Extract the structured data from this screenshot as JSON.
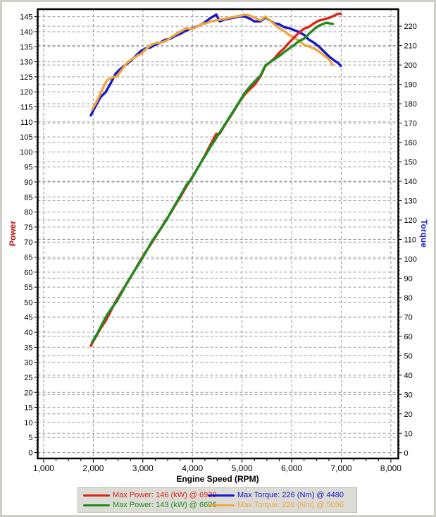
{
  "chart_data": {
    "type": "line",
    "title": "",
    "xlabel": "Engine Speed (RPM)",
    "grid": true,
    "grid_color": "#9c9c9c",
    "legend_position": "bottom",
    "axes": {
      "rpm": {
        "min": 880,
        "max": 8150,
        "tick_start": 1000,
        "tick_end": 8000,
        "major": 1000,
        "minor": 250
      },
      "power": {
        "min": -2,
        "max": 147.5,
        "tick_start": 0,
        "tick_end": 145,
        "major": 5,
        "minor": 1,
        "title": "Power",
        "title_color": "#b01010"
      },
      "torque": {
        "min": -3,
        "max": 228.8,
        "tick_start": 0,
        "tick_end": 220,
        "major": 10,
        "minor": 2,
        "title": "Torque",
        "title_color": "#2121c8"
      }
    },
    "series": [
      {
        "id": "max-power-run1",
        "name": "Max Power: 146 (kW) @ 6939",
        "axis": "power",
        "color": "#de2317",
        "z": 2,
        "points": [
          [
            1950,
            35.5
          ],
          [
            2050,
            38.4
          ],
          [
            2150,
            41.3
          ],
          [
            2250,
            43.8
          ],
          [
            2350,
            46.9
          ],
          [
            2450,
            50.2
          ],
          [
            2550,
            52.9
          ],
          [
            2650,
            55.5
          ],
          [
            2750,
            58.2
          ],
          [
            2850,
            61.0
          ],
          [
            2950,
            63.9
          ],
          [
            3050,
            66.6
          ],
          [
            3150,
            69.0
          ],
          [
            3250,
            71.6
          ],
          [
            3350,
            74.2
          ],
          [
            3450,
            77.0
          ],
          [
            3550,
            79.4
          ],
          [
            3650,
            82.2
          ],
          [
            3750,
            84.8
          ],
          [
            3850,
            87.7
          ],
          [
            3950,
            90.4
          ],
          [
            4050,
            93.1
          ],
          [
            4150,
            95.9
          ],
          [
            4250,
            98.8
          ],
          [
            4350,
            102.0
          ],
          [
            4480,
            106.0
          ],
          [
            4550,
            106.1
          ],
          [
            4650,
            108.9
          ],
          [
            4750,
            111.4
          ],
          [
            4850,
            114.0
          ],
          [
            4950,
            116.7
          ],
          [
            5050,
            119.0
          ],
          [
            5150,
            120.8
          ],
          [
            5250,
            122.3
          ],
          [
            5370,
            125.1
          ],
          [
            5470,
            128.6
          ],
          [
            5560,
            129.8
          ],
          [
            5650,
            131.1
          ],
          [
            5750,
            133.0
          ],
          [
            5850,
            134.5
          ],
          [
            5950,
            136.4
          ],
          [
            6050,
            138.1
          ],
          [
            6150,
            139.7
          ],
          [
            6250,
            141.0
          ],
          [
            6350,
            141.6
          ],
          [
            6450,
            142.8
          ],
          [
            6550,
            143.7
          ],
          [
            6650,
            144.1
          ],
          [
            6750,
            144.6
          ],
          [
            6850,
            145.3
          ],
          [
            6939,
            146.0
          ],
          [
            6990,
            146.0
          ]
        ]
      },
      {
        "id": "max-torque-run1",
        "name": "Max Torque: 226 (Nm) @ 4480",
        "axis": "torque",
        "color": "#1717cf",
        "z": 0,
        "points": [
          [
            1950,
            174
          ],
          [
            2050,
            179
          ],
          [
            2150,
            183.5
          ],
          [
            2250,
            186
          ],
          [
            2350,
            190.5
          ],
          [
            2450,
            195.5
          ],
          [
            2550,
            198
          ],
          [
            2650,
            200
          ],
          [
            2750,
            202
          ],
          [
            2850,
            204.5
          ],
          [
            2950,
            207
          ],
          [
            3050,
            208.5
          ],
          [
            3150,
            209
          ],
          [
            3250,
            210.5
          ],
          [
            3350,
            211.5
          ],
          [
            3450,
            213
          ],
          [
            3550,
            213.5
          ],
          [
            3650,
            215
          ],
          [
            3750,
            216
          ],
          [
            3850,
            217.5
          ],
          [
            3950,
            218.5
          ],
          [
            4050,
            219.5
          ],
          [
            4150,
            220.5
          ],
          [
            4250,
            222
          ],
          [
            4350,
            224
          ],
          [
            4480,
            226
          ],
          [
            4550,
            222.5
          ],
          [
            4650,
            223.5
          ],
          [
            4750,
            224
          ],
          [
            4850,
            224.5
          ],
          [
            4950,
            225
          ],
          [
            5050,
            225
          ],
          [
            5150,
            224
          ],
          [
            5250,
            222.5
          ],
          [
            5370,
            222.5
          ],
          [
            5470,
            224.5
          ],
          [
            5560,
            223
          ],
          [
            5650,
            221.5
          ],
          [
            5750,
            221
          ],
          [
            5850,
            219.5
          ],
          [
            5950,
            219
          ],
          [
            6050,
            218
          ],
          [
            6150,
            217
          ],
          [
            6250,
            215.5
          ],
          [
            6350,
            213
          ],
          [
            6450,
            211.5
          ],
          [
            6550,
            209.5
          ],
          [
            6650,
            207
          ],
          [
            6750,
            204.5
          ],
          [
            6850,
            202.5
          ],
          [
            6939,
            201
          ],
          [
            6990,
            199.5
          ]
        ]
      },
      {
        "id": "max-power-run2",
        "name": "Max Power: 143 (kW) @ 6696",
        "axis": "power",
        "color": "#1e8c1e",
        "z": 3,
        "points": [
          [
            1975,
            36.6
          ],
          [
            2075,
            39.4
          ],
          [
            2175,
            42.6
          ],
          [
            2275,
            45.7
          ],
          [
            2375,
            48.1
          ],
          [
            2475,
            50.3
          ],
          [
            2575,
            53.2
          ],
          [
            2675,
            56.3
          ],
          [
            2775,
            59.0
          ],
          [
            2875,
            61.6
          ],
          [
            2975,
            64.2
          ],
          [
            3075,
            67.1
          ],
          [
            3175,
            70.0
          ],
          [
            3275,
            72.5
          ],
          [
            3375,
            74.8
          ],
          [
            3475,
            77.3
          ],
          [
            3575,
            80.3
          ],
          [
            3675,
            83.1
          ],
          [
            3775,
            86.0
          ],
          [
            3875,
            88.9
          ],
          [
            3975,
            90.9
          ],
          [
            4075,
            93.7
          ],
          [
            4175,
            96.6
          ],
          [
            4275,
            99.2
          ],
          [
            4375,
            102.0
          ],
          [
            4475,
            104.5
          ],
          [
            4575,
            107.1
          ],
          [
            4675,
            109.7
          ],
          [
            4775,
            112.3
          ],
          [
            4875,
            114.9
          ],
          [
            4975,
            117.5
          ],
          [
            5056,
            119.7
          ],
          [
            5150,
            121.6
          ],
          [
            5250,
            123.4
          ],
          [
            5370,
            125.4
          ],
          [
            5470,
            128.8
          ],
          [
            5560,
            129.8
          ],
          [
            5650,
            130.8
          ],
          [
            5750,
            131.9
          ],
          [
            5850,
            133.2
          ],
          [
            5950,
            134.4
          ],
          [
            6050,
            135.6
          ],
          [
            6150,
            136.9
          ],
          [
            6250,
            137.7
          ],
          [
            6350,
            139.3
          ],
          [
            6450,
            140.8
          ],
          [
            6550,
            142.0
          ],
          [
            6696,
            143.0
          ],
          [
            6830,
            142.6
          ]
        ]
      },
      {
        "id": "max-torque-run2",
        "name": "Max Torque: 226 (Nm) @ 5056",
        "axis": "torque",
        "color": "#f0a63c",
        "z": 1,
        "points": [
          [
            1975,
            177
          ],
          [
            2075,
            181.5
          ],
          [
            2175,
            187
          ],
          [
            2275,
            192
          ],
          [
            2375,
            193.5
          ],
          [
            2475,
            194
          ],
          [
            2575,
            197.5
          ],
          [
            2675,
            201
          ],
          [
            2775,
            203
          ],
          [
            2875,
            204.5
          ],
          [
            2975,
            206
          ],
          [
            3075,
            208.5
          ],
          [
            3175,
            210.5
          ],
          [
            3275,
            211.5
          ],
          [
            3375,
            211.5
          ],
          [
            3475,
            212.5
          ],
          [
            3575,
            214.5
          ],
          [
            3675,
            216
          ],
          [
            3775,
            217.5
          ],
          [
            3875,
            219
          ],
          [
            3975,
            218.5
          ],
          [
            4075,
            219.5
          ],
          [
            4175,
            221
          ],
          [
            4275,
            221.5
          ],
          [
            4375,
            222.5
          ],
          [
            4475,
            223
          ],
          [
            4575,
            223.5
          ],
          [
            4675,
            224
          ],
          [
            4775,
            224.5
          ],
          [
            4875,
            225
          ],
          [
            4975,
            225.5
          ],
          [
            5056,
            226
          ],
          [
            5150,
            225.5
          ],
          [
            5250,
            224.5
          ],
          [
            5370,
            223
          ],
          [
            5470,
            225
          ],
          [
            5560,
            223
          ],
          [
            5650,
            221
          ],
          [
            5750,
            219
          ],
          [
            5850,
            217.5
          ],
          [
            5950,
            215.5
          ],
          [
            6050,
            214
          ],
          [
            6150,
            212.5
          ],
          [
            6250,
            210.5
          ],
          [
            6350,
            209.5
          ],
          [
            6450,
            208.5
          ],
          [
            6550,
            207
          ],
          [
            6650,
            205
          ],
          [
            6750,
            203
          ],
          [
            6830,
            200
          ]
        ]
      }
    ]
  }
}
